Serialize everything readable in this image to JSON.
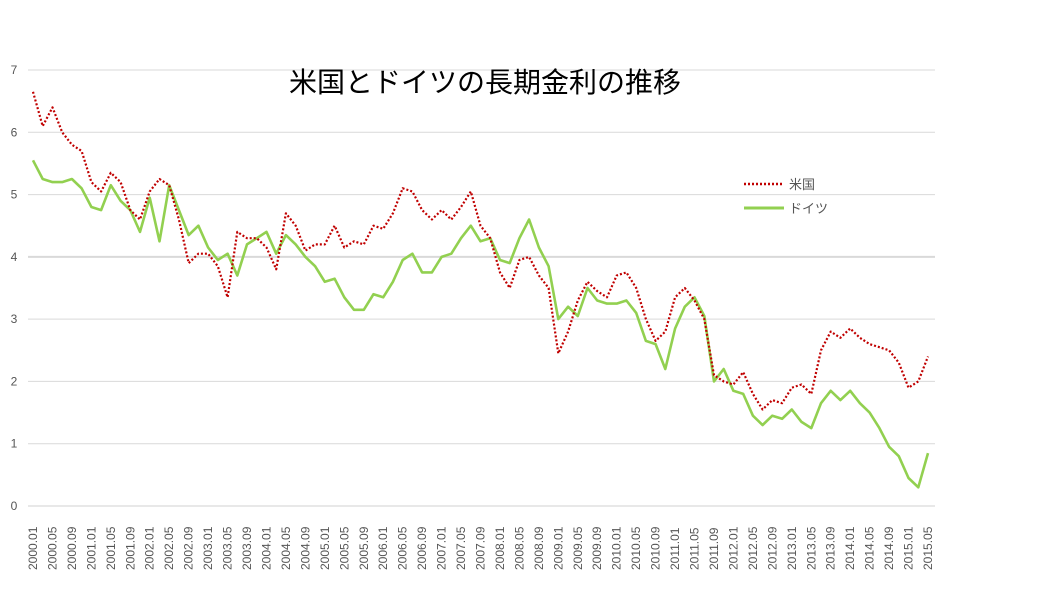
{
  "chart_data": {
    "type": "line",
    "title": "米国とドイツの長期金利の推移",
    "xlabel": "",
    "ylabel": "",
    "ylim": [
      0,
      7
    ],
    "yticks": [
      "0",
      "1",
      "2",
      "3",
      "4",
      "5",
      "6",
      "7"
    ],
    "grid": true,
    "legend_position": "right",
    "xtick_labels": [
      "2000.01",
      "2000.05",
      "2000.09",
      "2001.01",
      "2001.05",
      "2001.09",
      "2002.01",
      "2002.05",
      "2002.09",
      "2003.01",
      "2003.05",
      "2003.09",
      "2004.01",
      "2004.05",
      "2004.09",
      "2005.01",
      "2005.05",
      "2005.09",
      "2006.01",
      "2006.05",
      "2006.09",
      "2007.01",
      "2007.05",
      "2007.09",
      "2008.01",
      "2008.05",
      "2008.09",
      "2009.01",
      "2009.05",
      "2009.09",
      "2010.01",
      "2010.05",
      "2010.09",
      "2011.01",
      "2011.05",
      "2011.09",
      "2012.01",
      "2012.05",
      "2012.09",
      "2013.01",
      "2013.05",
      "2013.09",
      "2014.01",
      "2014.05",
      "2014.09",
      "2015.01",
      "2015.05"
    ],
    "x": [
      "2000.01",
      "2000.03",
      "2000.05",
      "2000.07",
      "2000.09",
      "2000.11",
      "2001.01",
      "2001.03",
      "2001.05",
      "2001.07",
      "2001.09",
      "2001.11",
      "2002.01",
      "2002.03",
      "2002.05",
      "2002.07",
      "2002.09",
      "2002.11",
      "2003.01",
      "2003.03",
      "2003.05",
      "2003.07",
      "2003.09",
      "2003.11",
      "2004.01",
      "2004.03",
      "2004.05",
      "2004.07",
      "2004.09",
      "2004.11",
      "2005.01",
      "2005.03",
      "2005.05",
      "2005.07",
      "2005.09",
      "2005.11",
      "2006.01",
      "2006.03",
      "2006.05",
      "2006.07",
      "2006.09",
      "2006.11",
      "2007.01",
      "2007.03",
      "2007.05",
      "2007.07",
      "2007.09",
      "2007.11",
      "2008.01",
      "2008.03",
      "2008.05",
      "2008.07",
      "2008.09",
      "2008.11",
      "2009.01",
      "2009.03",
      "2009.05",
      "2009.07",
      "2009.09",
      "2009.11",
      "2010.01",
      "2010.03",
      "2010.05",
      "2010.07",
      "2010.09",
      "2010.11",
      "2011.01",
      "2011.03",
      "2011.05",
      "2011.07",
      "2011.09",
      "2011.11",
      "2012.01",
      "2012.03",
      "2012.05",
      "2012.07",
      "2012.09",
      "2012.11",
      "2013.01",
      "2013.03",
      "2013.05",
      "2013.07",
      "2013.09",
      "2013.11",
      "2014.01",
      "2014.03",
      "2014.05",
      "2014.07",
      "2014.09",
      "2014.11",
      "2015.01",
      "2015.03",
      "2015.05"
    ],
    "series": [
      {
        "name": "米国",
        "color": "#c00000",
        "style": "dotted",
        "values": [
          6.65,
          6.1,
          6.4,
          6.0,
          5.8,
          5.7,
          5.2,
          5.05,
          5.35,
          5.2,
          4.75,
          4.6,
          5.05,
          5.25,
          5.15,
          4.6,
          3.9,
          4.05,
          4.05,
          3.85,
          3.35,
          4.4,
          4.3,
          4.3,
          4.15,
          3.8,
          4.7,
          4.5,
          4.1,
          4.2,
          4.2,
          4.5,
          4.15,
          4.25,
          4.2,
          4.5,
          4.45,
          4.7,
          5.1,
          5.05,
          4.75,
          4.6,
          4.75,
          4.6,
          4.8,
          5.05,
          4.5,
          4.3,
          3.75,
          3.5,
          3.95,
          4.0,
          3.7,
          3.5,
          2.45,
          2.8,
          3.3,
          3.6,
          3.45,
          3.35,
          3.7,
          3.75,
          3.5,
          3.0,
          2.65,
          2.8,
          3.35,
          3.5,
          3.3,
          3.0,
          2.1,
          2.0,
          1.95,
          2.15,
          1.8,
          1.55,
          1.7,
          1.65,
          1.9,
          1.95,
          1.8,
          2.5,
          2.8,
          2.7,
          2.85,
          2.7,
          2.6,
          2.55,
          2.5,
          2.3,
          1.9,
          2.0,
          2.4
        ]
      },
      {
        "name": "ドイツ",
        "color": "#92d050",
        "style": "solid",
        "values": [
          5.55,
          5.25,
          5.2,
          5.2,
          5.25,
          5.1,
          4.8,
          4.75,
          5.15,
          4.9,
          4.75,
          4.4,
          4.95,
          4.25,
          5.15,
          4.75,
          4.35,
          4.5,
          4.15,
          3.95,
          4.05,
          3.7,
          4.2,
          4.3,
          4.4,
          4.05,
          4.35,
          4.2,
          4.0,
          3.85,
          3.6,
          3.65,
          3.35,
          3.15,
          3.15,
          3.4,
          3.35,
          3.6,
          3.95,
          4.05,
          3.75,
          3.75,
          4.0,
          4.05,
          4.3,
          4.5,
          4.25,
          4.3,
          3.95,
          3.9,
          4.3,
          4.6,
          4.15,
          3.85,
          3.0,
          3.2,
          3.05,
          3.5,
          3.3,
          3.25,
          3.25,
          3.3,
          3.1,
          2.65,
          2.6,
          2.2,
          2.85,
          3.2,
          3.35,
          3.05,
          2.0,
          2.2,
          1.85,
          1.8,
          1.45,
          1.3,
          1.45,
          1.4,
          1.55,
          1.35,
          1.25,
          1.65,
          1.85,
          1.7,
          1.85,
          1.65,
          1.5,
          1.25,
          0.95,
          0.8,
          0.45,
          0.3,
          0.85
        ]
      }
    ]
  }
}
